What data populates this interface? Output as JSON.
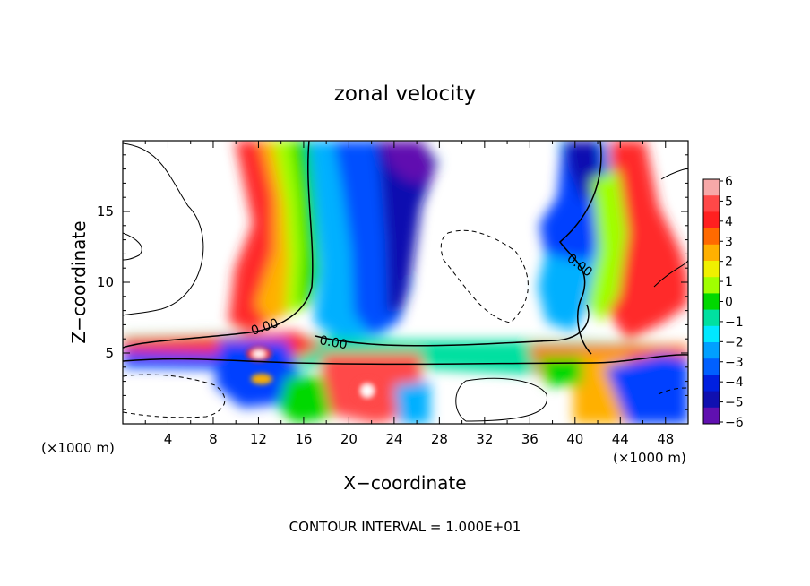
{
  "chart_data": {
    "type": "heatmap",
    "title": "zonal velocity",
    "xlabel": "X−coordinate",
    "ylabel": "Z−coordinate",
    "x_unit_left": "(×1000 m)",
    "x_unit_right": "(×1000 m)",
    "xlim": [
      0,
      50
    ],
    "ylim": [
      0,
      20
    ],
    "x_ticks": [
      4,
      8,
      12,
      16,
      20,
      24,
      28,
      32,
      36,
      40,
      44,
      48
    ],
    "y_ticks": [
      5,
      10,
      15
    ],
    "colorbar": {
      "min": -6,
      "max": 6,
      "tick_labels": [
        "6",
        "5",
        "4",
        "3",
        "2",
        "1",
        "0",
        "−1",
        "−2",
        "−3",
        "−4",
        "−5",
        "−6"
      ],
      "colors": [
        "#f7a8a8",
        "#ff4848",
        "#ff2020",
        "#ff6a00",
        "#ffb000",
        "#f0f000",
        "#a0ff00",
        "#00d800",
        "#00e0a0",
        "#00e8ff",
        "#00a0ff",
        "#0060ff",
        "#0020e0",
        "#1010b0",
        "#6010b0"
      ]
    },
    "contour_labels": [
      "0.00",
      "0.00",
      "0.00"
    ],
    "contour_interval_text": "CONTOUR INTERVAL =   1.000E+01"
  }
}
